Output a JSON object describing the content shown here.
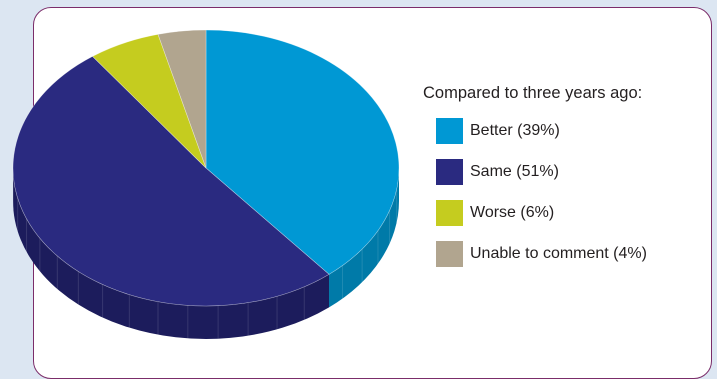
{
  "chart_data": {
    "type": "pie",
    "legend_title": "Compared to three years ago:",
    "legend_position": "right",
    "slices": [
      {
        "label": "Better (39%)",
        "value": 39,
        "color": "#0098d4",
        "side_color": "#007aa8"
      },
      {
        "label": "Same (51%)",
        "value": 51,
        "color": "#2a2a80",
        "side_color": "#1c1c5c"
      },
      {
        "label": "Worse (6%)",
        "value": 6,
        "color": "#c5cc1f",
        "side_color": "#9ea317"
      },
      {
        "label": "Unable to comment (4%)",
        "value": 4,
        "color": "#b1a58f",
        "side_color": "#8e8472"
      }
    ]
  },
  "colors": {
    "background": "#dce6f2",
    "card": "#ffffff",
    "card_border": "#7b2d6a"
  }
}
